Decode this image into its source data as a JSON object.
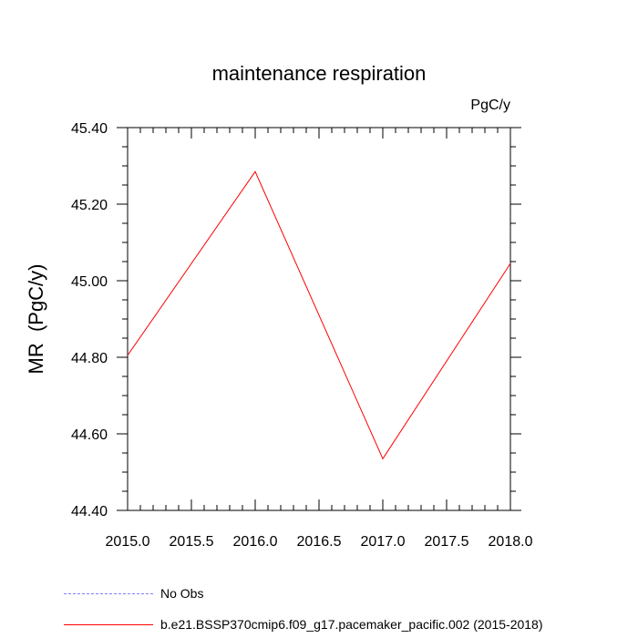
{
  "chart_data": {
    "type": "line",
    "title": "maintenance respiration",
    "units_label": "PgC/y",
    "ylabel": "MR  (PgC/y)",
    "xlabel": "",
    "xlim": [
      2015.0,
      2018.0
    ],
    "ylim": [
      44.4,
      45.4
    ],
    "xticks": [
      "2015.0",
      "2015.5",
      "2016.0",
      "2016.5",
      "2017.0",
      "2017.5",
      "2018.0"
    ],
    "xtick_values": [
      2015.0,
      2015.5,
      2016.0,
      2016.5,
      2017.0,
      2017.5,
      2018.0
    ],
    "yticks": [
      "44.40",
      "44.60",
      "44.80",
      "45.00",
      "45.20",
      "45.40"
    ],
    "ytick_values": [
      44.4,
      44.6,
      44.8,
      45.0,
      45.2,
      45.4
    ],
    "series": [
      {
        "name": "b.e21.BSSP370cmip6.f09_g17.pacemaker_pacific.002 (2015-2018)",
        "color": "#ff0000",
        "x": [
          2015,
          2016,
          2017,
          2018
        ],
        "values": [
          44.805,
          45.285,
          44.535,
          45.045
        ]
      }
    ],
    "legend": [
      {
        "label": "No Obs",
        "color": "#8080ff",
        "style": "dashed"
      },
      {
        "label": "b.e21.BSSP370cmip6.f09_g17.pacemaker_pacific.002 (2015-2018)",
        "color": "#ff0000",
        "style": "solid"
      }
    ]
  }
}
